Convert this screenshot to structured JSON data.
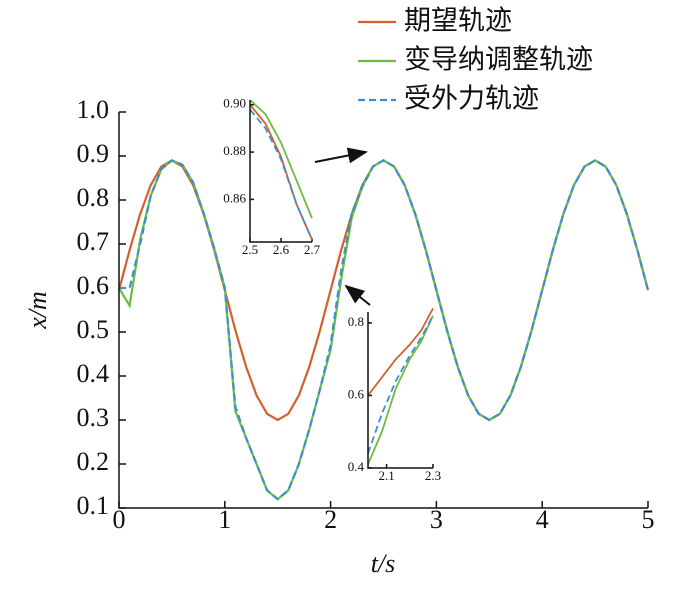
{
  "chart_data": [
    {
      "type": "line",
      "xlabel": "t/s",
      "ylabel": "x/m",
      "x": [
        0,
        0.1,
        0.2,
        0.3,
        0.4,
        0.5,
        0.6,
        0.7,
        0.8,
        0.9,
        1,
        1.1,
        1.2,
        1.3,
        1.4,
        1.5,
        1.6,
        1.7,
        1.8,
        1.9,
        2,
        2.1,
        2.2,
        2.3,
        2.4,
        2.5,
        2.6,
        2.7,
        2.8,
        2.9,
        3,
        3.1,
        3.2,
        3.3,
        3.4,
        3.5,
        3.6,
        3.7,
        3.8,
        3.9,
        4,
        4.1,
        4.2,
        4.3,
        4.4,
        4.5,
        4.6,
        4.7,
        4.8,
        4.9,
        5
      ],
      "series": [
        {
          "name": "期望轨迹",
          "color": "#d3602c",
          "values": [
            0.595,
            0.686,
            0.768,
            0.834,
            0.876,
            0.89,
            0.876,
            0.834,
            0.768,
            0.686,
            0.595,
            0.504,
            0.422,
            0.356,
            0.314,
            0.3,
            0.314,
            0.356,
            0.422,
            0.504,
            0.595,
            0.686,
            0.768,
            0.834,
            0.876,
            0.89,
            0.876,
            0.834,
            0.768,
            0.686,
            0.595,
            0.504,
            0.422,
            0.356,
            0.314,
            0.3,
            0.314,
            0.356,
            0.422,
            0.504,
            0.595,
            0.686,
            0.768,
            0.834,
            0.876,
            0.89,
            0.876,
            0.834,
            0.768,
            0.686,
            0.595
          ]
        },
        {
          "name": "变导纳调整轨迹",
          "color": "#6cbd3e",
          "values": [
            0.6,
            0.56,
            0.71,
            0.81,
            0.87,
            0.89,
            0.88,
            0.84,
            0.77,
            0.69,
            0.6,
            0.32,
            0.26,
            0.2,
            0.14,
            0.12,
            0.14,
            0.2,
            0.28,
            0.37,
            0.46,
            0.62,
            0.76,
            0.83,
            0.876,
            0.89,
            0.876,
            0.834,
            0.768,
            0.686,
            0.595,
            0.504,
            0.422,
            0.356,
            0.314,
            0.3,
            0.314,
            0.356,
            0.422,
            0.504,
            0.595,
            0.686,
            0.768,
            0.834,
            0.876,
            0.89,
            0.876,
            0.834,
            0.768,
            0.686,
            0.595
          ]
        },
        {
          "name": "受外力轨迹",
          "color": "#3d8fd1",
          "dashed": true,
          "values": [
            0.6,
            0.6,
            0.7,
            0.81,
            0.87,
            0.89,
            0.88,
            0.84,
            0.77,
            0.69,
            0.6,
            0.33,
            0.26,
            0.2,
            0.14,
            0.12,
            0.14,
            0.2,
            0.28,
            0.37,
            0.47,
            0.64,
            0.77,
            0.83,
            0.876,
            0.89,
            0.876,
            0.834,
            0.768,
            0.686,
            0.595,
            0.504,
            0.422,
            0.356,
            0.314,
            0.3,
            0.314,
            0.356,
            0.422,
            0.504,
            0.595,
            0.686,
            0.768,
            0.834,
            0.876,
            0.89,
            0.876,
            0.834,
            0.768,
            0.686,
            0.595
          ]
        }
      ],
      "xlim": [
        0,
        5
      ],
      "ylim": [
        0.1,
        1.0
      ],
      "xticks": [
        0,
        1,
        2,
        3,
        4,
        5
      ],
      "yticks": [
        0.1,
        0.2,
        0.3,
        0.4,
        0.5,
        0.6,
        0.7,
        0.8,
        0.9,
        {
          "value": 1,
          "label": "1.0"
        }
      ]
    },
    {
      "type": "line",
      "x": [
        2.5,
        2.55,
        2.6,
        2.65,
        2.7
      ],
      "series": [
        {
          "color": "#d3602c",
          "values": [
            0.9,
            0.892,
            0.878,
            0.858,
            0.843
          ]
        },
        {
          "color": "#6cbd3e",
          "values": [
            0.902,
            0.896,
            0.884,
            0.868,
            0.852
          ]
        },
        {
          "color": "#3d8fd1",
          "dashed": true,
          "values": [
            0.898,
            0.89,
            0.877,
            0.858,
            0.843
          ]
        }
      ],
      "xlim": [
        2.5,
        2.7
      ],
      "ylim": [
        0.842,
        0.902
      ],
      "xticks": [
        2.5,
        2.6,
        2.7
      ],
      "yticks": [
        0.86,
        0.88,
        {
          "value": 0.9,
          "label": "0.90"
        }
      ]
    },
    {
      "type": "line",
      "x": [
        2.02,
        2.08,
        2.14,
        2.2,
        2.25,
        2.3
      ],
      "series": [
        {
          "color": "#d3602c",
          "values": [
            0.6,
            0.65,
            0.7,
            0.74,
            0.78,
            0.84
          ]
        },
        {
          "color": "#6cbd3e",
          "values": [
            0.41,
            0.5,
            0.62,
            0.7,
            0.75,
            0.82
          ]
        },
        {
          "color": "#3d8fd1",
          "dashed": true,
          "values": [
            0.44,
            0.55,
            0.64,
            0.71,
            0.76,
            0.82
          ]
        }
      ],
      "xlim": [
        2.02,
        2.3
      ],
      "ylim": [
        0.4,
        0.83
      ],
      "xticks": [
        2.1,
        2.3
      ],
      "yticks": [
        0.4,
        0.6,
        0.8
      ]
    }
  ]
}
